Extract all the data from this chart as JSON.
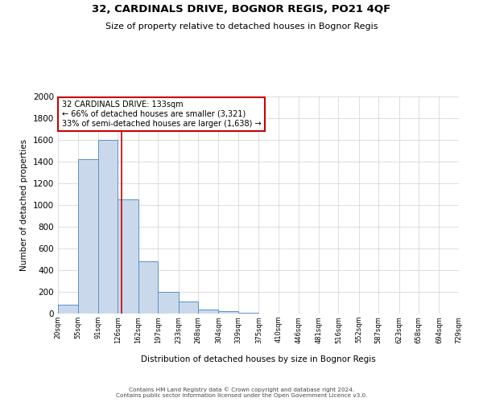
{
  "title": "32, CARDINALS DRIVE, BOGNOR REGIS, PO21 4QF",
  "subtitle": "Size of property relative to detached houses in Bognor Regis",
  "xlabel": "Distribution of detached houses by size in Bognor Regis",
  "ylabel": "Number of detached properties",
  "bar_values": [
    85,
    1420,
    1600,
    1050,
    480,
    200,
    110,
    40,
    20,
    10,
    0,
    0,
    0,
    0,
    0,
    0,
    0,
    0,
    0,
    0
  ],
  "bin_labels": [
    "20sqm",
    "55sqm",
    "91sqm",
    "126sqm",
    "162sqm",
    "197sqm",
    "233sqm",
    "268sqm",
    "304sqm",
    "339sqm",
    "375sqm",
    "410sqm",
    "446sqm",
    "481sqm",
    "516sqm",
    "552sqm",
    "587sqm",
    "623sqm",
    "658sqm",
    "694sqm",
    "729sqm"
  ],
  "bin_edges": [
    20,
    55,
    91,
    126,
    162,
    197,
    233,
    268,
    304,
    339,
    375,
    410,
    446,
    481,
    516,
    552,
    587,
    623,
    658,
    694,
    729
  ],
  "bar_color": "#c9d9eb",
  "bar_edge_color": "#5b8fc9",
  "vline_x": 133,
  "vline_color": "#cc0000",
  "ylim": [
    0,
    2000
  ],
  "yticks": [
    0,
    200,
    400,
    600,
    800,
    1000,
    1200,
    1400,
    1600,
    1800,
    2000
  ],
  "annotation_title": "32 CARDINALS DRIVE: 133sqm",
  "annotation_line1": "← 66% of detached houses are smaller (3,321)",
  "annotation_line2": "33% of semi-detached houses are larger (1,638) →",
  "annotation_box_color": "#ffffff",
  "annotation_box_edge_color": "#cc0000",
  "footer_line1": "Contains HM Land Registry data © Crown copyright and database right 2024.",
  "footer_line2": "Contains public sector information licensed under the Open Government Licence v3.0.",
  "background_color": "#ffffff",
  "grid_color": "#d0d0d0"
}
